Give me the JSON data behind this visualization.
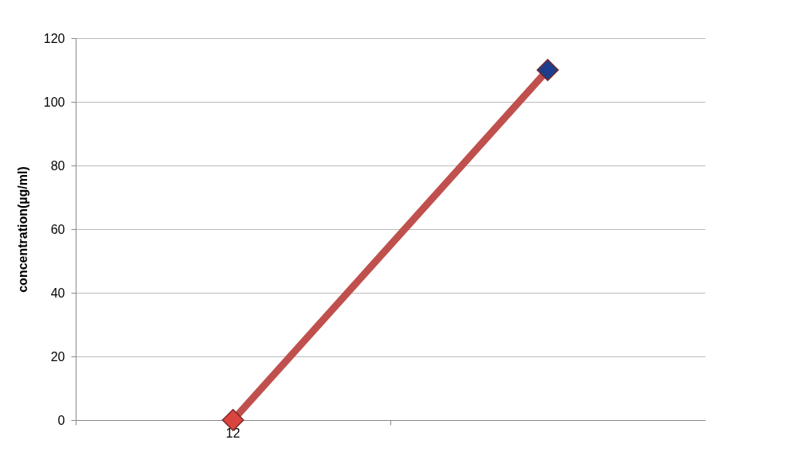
{
  "chart_data": {
    "type": "line",
    "ylabel": "concentration(µg/ml)",
    "categories": [
      "12",
      null
    ],
    "series": [
      {
        "color": "#c0504d",
        "colors": [
          "#d9443f",
          "#1f3d8c"
        ],
        "values": [
          0,
          110
        ]
      }
    ],
    "ylim": [
      0,
      120
    ],
    "yticks": [
      0,
      20,
      40,
      60,
      80,
      100,
      120
    ],
    "grid": "y",
    "marker": "diamond",
    "line_style": "solid"
  }
}
